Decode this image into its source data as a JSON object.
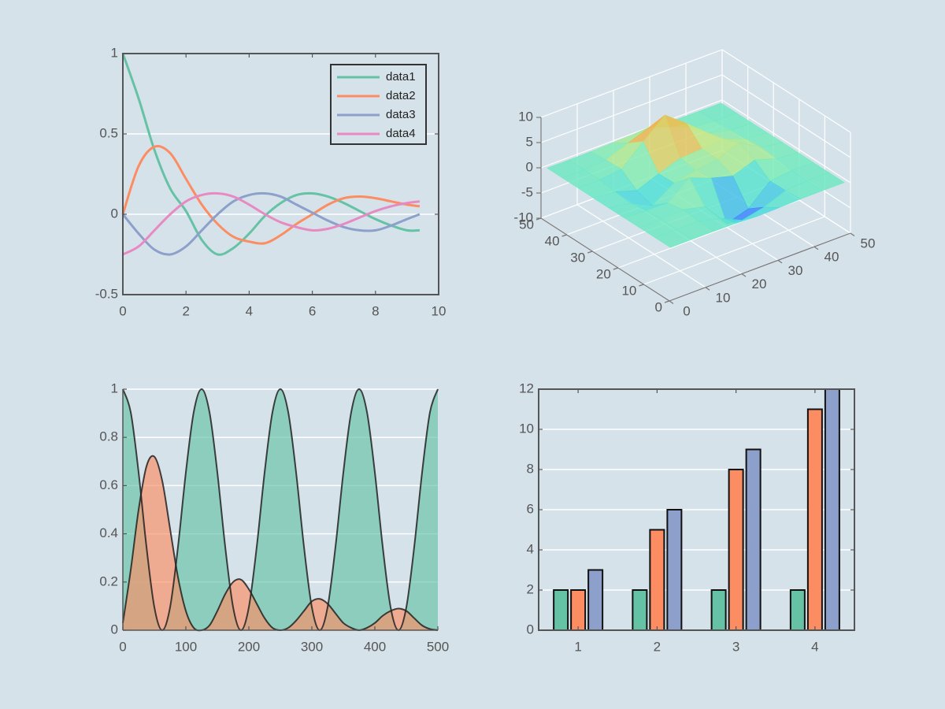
{
  "chart_data": [
    {
      "type": "line",
      "x": [
        0,
        0.5,
        1,
        1.5,
        2,
        2.5,
        3,
        3.5,
        4,
        4.5,
        5,
        5.5,
        6,
        6.5,
        7,
        7.5,
        8,
        8.5,
        9,
        9.4
      ],
      "series": [
        {
          "name": "data1",
          "color": "#66c2a5",
          "values": [
            1,
            0.72,
            0.4,
            0.16,
            0.02,
            -0.16,
            -0.25,
            -0.21,
            -0.12,
            -0.01,
            0.07,
            0.12,
            0.13,
            0.11,
            0.07,
            0.02,
            -0.03,
            -0.07,
            -0.1,
            -0.1
          ]
        },
        {
          "name": "data2",
          "color": "#fc8d62",
          "values": [
            0,
            0.3,
            0.42,
            0.38,
            0.22,
            0.06,
            -0.06,
            -0.14,
            -0.17,
            -0.18,
            -0.13,
            -0.06,
            0,
            0.06,
            0.1,
            0.11,
            0.1,
            0.08,
            0.06,
            0.05
          ]
        },
        {
          "name": "data3",
          "color": "#8da0cb",
          "values": [
            0,
            -0.12,
            -0.22,
            -0.25,
            -0.2,
            -0.1,
            0,
            0.08,
            0.12,
            0.13,
            0.11,
            0.06,
            0.01,
            -0.04,
            -0.08,
            -0.1,
            -0.1,
            -0.07,
            -0.03,
            0
          ]
        },
        {
          "name": "data4",
          "color": "#e78ac3",
          "values": [
            -0.25,
            -0.2,
            -0.1,
            0,
            0.08,
            0.12,
            0.13,
            0.11,
            0.06,
            0,
            -0.05,
            -0.08,
            -0.1,
            -0.09,
            -0.06,
            -0.02,
            0.02,
            0.05,
            0.07,
            0.08
          ]
        }
      ],
      "xlim": [
        0,
        10
      ],
      "ylim": [
        -0.5,
        1
      ],
      "xticks": [
        0,
        2,
        4,
        6,
        8,
        10
      ],
      "yticks": [
        -0.5,
        0,
        0.5,
        1
      ],
      "grid": true,
      "box": true,
      "legend": "northeast"
    },
    {
      "type": "surface",
      "x": [
        1,
        7,
        13,
        19,
        25,
        31,
        37,
        43,
        49
      ],
      "y": [
        1,
        7,
        13,
        19,
        25,
        31,
        37,
        43,
        49
      ],
      "z": [
        [
          0,
          0,
          0,
          -0.07,
          -0.24,
          -0.17,
          -0.03,
          0,
          0
        ],
        [
          0,
          0.01,
          0.01,
          -1,
          -3.02,
          -2.05,
          -0.35,
          -0.01,
          0
        ],
        [
          0,
          0.03,
          0.33,
          -0.68,
          -5.68,
          -4.32,
          -0.44,
          0.05,
          0
        ],
        [
          -0.02,
          -0.25,
          -0.28,
          3.09,
          1.4,
          0.2,
          1.78,
          0.41,
          0.02
        ],
        [
          -0.04,
          -0.69,
          -2.77,
          0.06,
          0.98,
          1.57,
          3.27,
          0.7,
          0.03
        ],
        [
          -0.02,
          -0.42,
          -1.76,
          -0.05,
          1.42,
          1.65,
          1.99,
          0.4,
          0.02
        ],
        [
          0,
          -0.03,
          0.48,
          4.37,
          8,
          4.72,
          1.19,
          0.12,
          0
        ],
        [
          0,
          0.02,
          0.36,
          2.07,
          3.65,
          2.09,
          0.41,
          0.03,
          0
        ],
        [
          0,
          0,
          0.03,
          0.17,
          0.3,
          0.17,
          0.03,
          0,
          0
        ]
      ],
      "xlim": [
        0,
        50
      ],
      "ylim": [
        0,
        50
      ],
      "zlim": [
        -10,
        10
      ],
      "xticks": [
        0,
        10,
        20,
        30,
        40,
        50
      ],
      "yticks": [
        0,
        10,
        20,
        30,
        40,
        50
      ],
      "zticks": [
        -10,
        -5,
        0,
        5,
        10
      ],
      "colormap": "jet",
      "grid": true
    },
    {
      "type": "area",
      "x": [
        0,
        12.5,
        25,
        37.5,
        50,
        62.5,
        75,
        87.5,
        100,
        112.5,
        125,
        137.5,
        150,
        162.5,
        175,
        187.5,
        200,
        212.5,
        225,
        237.5,
        250,
        262.5,
        275,
        287.5,
        300,
        312.5,
        325,
        337.5,
        350,
        362.5,
        375,
        387.5,
        400,
        412.5,
        425,
        437.5,
        450,
        462.5,
        475,
        487.5,
        500
      ],
      "series": [
        {
          "color": "#66c2a5",
          "values": [
            1,
            0.9045,
            0.6545,
            0.3455,
            0.0955,
            0,
            0.0955,
            0.3455,
            0.6545,
            0.9045,
            1,
            0.9045,
            0.6545,
            0.3455,
            0.0955,
            0,
            0.0955,
            0.3455,
            0.6545,
            0.9045,
            1,
            0.9045,
            0.6545,
            0.3455,
            0.0955,
            0,
            0.0955,
            0.3455,
            0.6545,
            0.9045,
            1,
            0.9045,
            0.6545,
            0.3455,
            0.0955,
            0,
            0.0955,
            0.3455,
            0.6545,
            0.9045,
            1
          ]
        },
        {
          "color": "#fc8d62",
          "values": [
            0.03,
            0.25,
            0.5,
            0.68,
            0.72,
            0.62,
            0.42,
            0.22,
            0.08,
            0.01,
            0,
            0.02,
            0.08,
            0.15,
            0.2,
            0.21,
            0.17,
            0.11,
            0.05,
            0.01,
            0,
            0.01,
            0.04,
            0.08,
            0.12,
            0.13,
            0.11,
            0.07,
            0.03,
            0.01,
            0,
            0.01,
            0.03,
            0.06,
            0.08,
            0.09,
            0.08,
            0.05,
            0.02,
            0.005,
            0
          ]
        }
      ],
      "xlim": [
        0,
        500
      ],
      "ylim": [
        0,
        1
      ],
      "xticks": [
        0,
        100,
        200,
        300,
        400,
        500
      ],
      "yticks": [
        0,
        0.2,
        0.4,
        0.6,
        0.8,
        1
      ],
      "grid": true
    },
    {
      "type": "bar",
      "categories": [
        "1",
        "2",
        "3",
        "4"
      ],
      "series": [
        {
          "color": "#66c2a5",
          "values": [
            2,
            2,
            2,
            2
          ]
        },
        {
          "color": "#fc8d62",
          "values": [
            2,
            5,
            8,
            11
          ]
        },
        {
          "color": "#8da0cb",
          "values": [
            3,
            6,
            9,
            12
          ]
        }
      ],
      "ylim": [
        0,
        12
      ],
      "yticks": [
        0,
        2,
        4,
        6,
        8,
        10,
        12
      ],
      "grid": true,
      "box": true
    }
  ]
}
